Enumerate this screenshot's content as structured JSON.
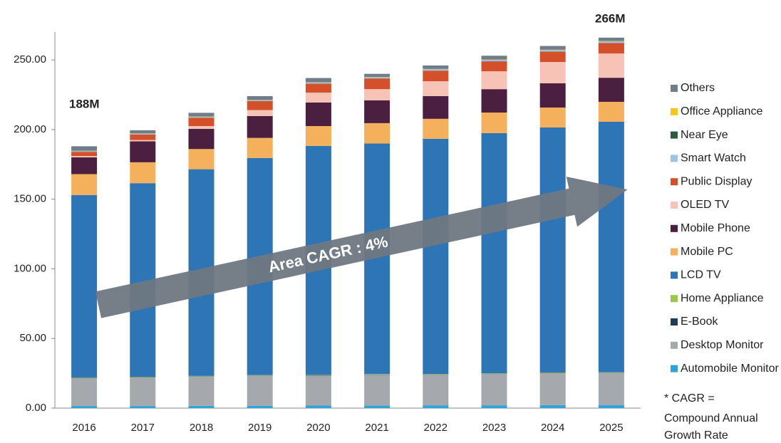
{
  "chart_data": {
    "type": "stacked_bar",
    "categories": [
      "2016",
      "2017",
      "2018",
      "2019",
      "2020",
      "2021",
      "2022",
      "2023",
      "2024",
      "2025"
    ],
    "series": [
      {
        "name": "Automobile Monitor",
        "color": "#2fa4d8",
        "values": [
          1.5,
          1.5,
          1.6,
          1.7,
          1.8,
          1.9,
          2,
          2,
          2.1,
          2.2
        ]
      },
      {
        "name": "Desktop Monitor",
        "color": "#a5a9ae",
        "values": [
          20,
          20.5,
          21,
          21.5,
          21.5,
          22,
          22,
          22.5,
          23,
          23
        ]
      },
      {
        "name": "E-Book",
        "color": "#1f3b5c",
        "values": [
          0.2,
          0.2,
          0.2,
          0.2,
          0.2,
          0.2,
          0.2,
          0.2,
          0.2,
          0.2
        ]
      },
      {
        "name": "Home Appliance",
        "color": "#9bc84a",
        "values": [
          0.3,
          0.3,
          0.3,
          0.3,
          0.3,
          0.3,
          0.3,
          0.3,
          0.3,
          0.3
        ]
      },
      {
        "name": "LCD TV",
        "color": "#2e75b6",
        "values": [
          131,
          139,
          148.4,
          155.9,
          164.5,
          165.6,
          168.9,
          172.4,
          175.9,
          179.9
        ]
      },
      {
        "name": "Mobile PC",
        "color": "#f4b05a",
        "values": [
          15,
          15,
          14.5,
          14.4,
          14.2,
          14.6,
          14.3,
          14.8,
          14.3,
          14.3
        ]
      },
      {
        "name": "Mobile Phone",
        "color": "#4b1f3f",
        "values": [
          12,
          15,
          14.5,
          15.7,
          16.9,
          16.4,
          16.3,
          16.8,
          17.4,
          17.3
        ]
      },
      {
        "name": "OLED TV",
        "color": "#f6c3b6",
        "values": [
          1,
          1,
          2,
          4.3,
          7.1,
          8,
          10.7,
          12.8,
          15.3,
          17.4
        ]
      },
      {
        "name": "Public Display",
        "color": "#d3502a",
        "values": [
          3,
          4,
          6,
          6.4,
          6.5,
          7.7,
          7.6,
          7.2,
          7.5,
          7.6
        ]
      },
      {
        "name": "Smart Watch",
        "color": "#9dc3e6",
        "values": [
          0.5,
          0.5,
          0.6,
          0.6,
          0.7,
          0.8,
          0.9,
          1,
          1,
          1.1
        ]
      },
      {
        "name": "Near Eye",
        "color": "#2a5e3a",
        "values": [
          0.1,
          0.1,
          0.1,
          0.1,
          0.1,
          0.1,
          0.1,
          0.1,
          0.1,
          0.1
        ]
      },
      {
        "name": "Office Appliance",
        "color": "#f5c518",
        "values": [
          0.2,
          0.2,
          0.2,
          0.2,
          0.2,
          0.2,
          0.2,
          0.2,
          0.2,
          0.2
        ]
      },
      {
        "name": "Others",
        "color": "#6f7c8a",
        "values": [
          3.2,
          2.2,
          2.6,
          2.7,
          3,
          2.2,
          2.5,
          2.7,
          2.7,
          2.4
        ]
      }
    ],
    "ylim": [
      0,
      270
    ],
    "yticks": [
      {
        "value": 0,
        "label": "0.00"
      },
      {
        "value": 50,
        "label": "50.00"
      },
      {
        "value": 100,
        "label": "100.00"
      },
      {
        "value": 150,
        "label": "150.00"
      },
      {
        "value": 200,
        "label": "200.00"
      },
      {
        "value": 250,
        "label": "250.00"
      }
    ],
    "annotations": {
      "start_total": "188M",
      "end_total": "266M",
      "arrow_text": "Area CAGR : 4%"
    },
    "footnote": [
      "* CAGR  =",
      "Compound Annual",
      "Growth Rate"
    ]
  }
}
